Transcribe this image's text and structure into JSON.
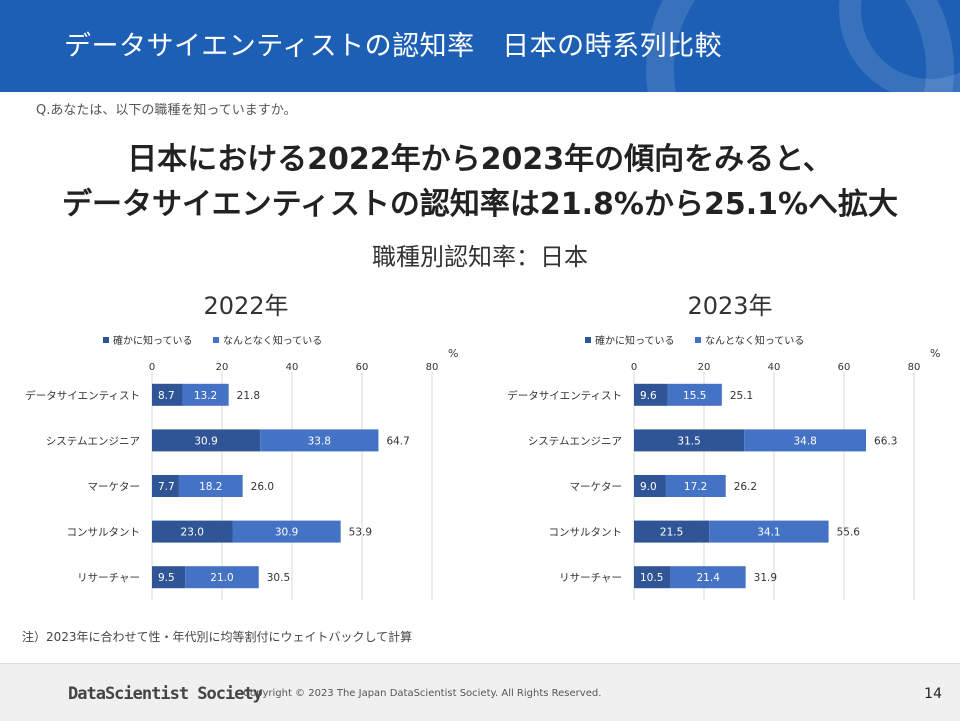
{
  "header": {
    "title": "データサイエンティストの認知率　日本の時系列比較"
  },
  "question": "Q.あなたは、以下の職種を知っていますか。",
  "headline": {
    "line1": "日本における2022年から2023年の傾向をみると、",
    "line2": "データサイエンティストの認知率は21.8%から25.1%へ拡大"
  },
  "subtitle": "職種別認知率：日本",
  "colors": {
    "header_bg": "#1d5fb4",
    "series1": "#2f5597",
    "series2": "#4472c4",
    "gridline": "#d9d9d9"
  },
  "chart_data": [
    {
      "type": "bar",
      "orientation": "horizontal",
      "stacked": true,
      "title": "2022年",
      "unit_label": "%",
      "xlim": [
        0,
        80
      ],
      "xticks": [
        0,
        20,
        40,
        60,
        80
      ],
      "grid": true,
      "legend": "top",
      "categories": [
        "データサイエンティスト",
        "システムエンジニア",
        "マーケター",
        "コンサルタント",
        "リサーチャー"
      ],
      "series": [
        {
          "name": "確かに知っている",
          "values": [
            8.7,
            30.9,
            7.7,
            23.0,
            9.5
          ]
        },
        {
          "name": "なんとなく知っている",
          "values": [
            13.2,
            33.8,
            18.2,
            30.9,
            21.0
          ]
        }
      ],
      "totals": [
        21.8,
        64.7,
        26.0,
        53.9,
        30.5
      ]
    },
    {
      "type": "bar",
      "orientation": "horizontal",
      "stacked": true,
      "title": "2023年",
      "unit_label": "%",
      "xlim": [
        0,
        80
      ],
      "xticks": [
        0,
        20,
        40,
        60,
        80
      ],
      "grid": true,
      "legend": "top",
      "categories": [
        "データサイエンティスト",
        "システムエンジニア",
        "マーケター",
        "コンサルタント",
        "リサーチャー"
      ],
      "series": [
        {
          "name": "確かに知っている",
          "values": [
            9.6,
            31.5,
            9.0,
            21.5,
            10.5
          ]
        },
        {
          "name": "なんとなく知っている",
          "values": [
            15.5,
            34.8,
            17.2,
            34.1,
            21.4
          ]
        }
      ],
      "totals": [
        25.1,
        66.3,
        26.2,
        55.6,
        31.9
      ]
    }
  ],
  "note": "注）2023年に合わせて性・年代別に均等割付にウェイトバックして計算",
  "footer": {
    "logo": "DataScientist Society",
    "copyright": "Copyright © 2023 The Japan DataScientist Society. All Rights Reserved.",
    "page_number": "14"
  }
}
